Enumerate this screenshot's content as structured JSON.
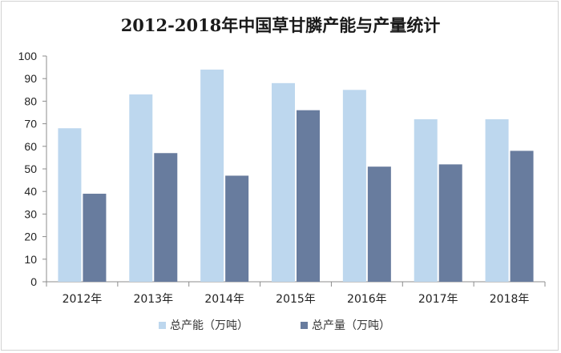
{
  "chart_data": {
    "type": "bar",
    "title": "2012-2018年中国草甘膦产能与产量统计",
    "categories": [
      "2012年",
      "2013年",
      "2014年",
      "2015年",
      "2016年",
      "2017年",
      "2018年"
    ],
    "series": [
      {
        "name": "总产能（万吨）",
        "values": [
          68,
          83,
          94,
          88,
          85,
          72,
          72
        ],
        "color": "#bdd7ee"
      },
      {
        "name": "总产量（万吨）",
        "values": [
          39,
          57,
          47,
          76,
          51,
          52,
          58
        ],
        "color": "#687c9e"
      }
    ],
    "ylim": [
      0,
      100
    ],
    "yticks": [
      0,
      10,
      20,
      30,
      40,
      50,
      60,
      70,
      80,
      90,
      100
    ],
    "grid": false,
    "legend_position": "bottom",
    "xlabel": "",
    "ylabel": ""
  }
}
